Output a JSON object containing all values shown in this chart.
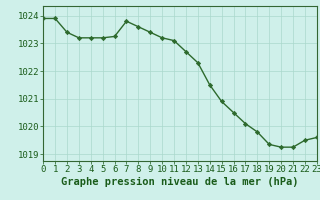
{
  "x": [
    0,
    1,
    2,
    3,
    4,
    5,
    6,
    7,
    8,
    9,
    10,
    11,
    12,
    13,
    14,
    15,
    16,
    17,
    18,
    19,
    20,
    21,
    22,
    23
  ],
  "y": [
    1023.9,
    1023.9,
    1023.4,
    1023.2,
    1023.2,
    1023.2,
    1023.25,
    1023.8,
    1023.6,
    1023.4,
    1023.2,
    1023.1,
    1022.7,
    1022.3,
    1021.5,
    1020.9,
    1020.5,
    1020.1,
    1019.8,
    1019.35,
    1019.25,
    1019.25,
    1019.5,
    1019.6
  ],
  "xlim": [
    0,
    23
  ],
  "ylim": [
    1018.75,
    1024.35
  ],
  "yticks": [
    1019,
    1020,
    1021,
    1022,
    1023,
    1024
  ],
  "xticks": [
    0,
    1,
    2,
    3,
    4,
    5,
    6,
    7,
    8,
    9,
    10,
    11,
    12,
    13,
    14,
    15,
    16,
    17,
    18,
    19,
    20,
    21,
    22,
    23
  ],
  "xlabel": "Graphe pression niveau de la mer (hPa)",
  "line_color": "#2d6a2d",
  "marker": "D",
  "marker_size": 2.2,
  "bg_color": "#cff0ea",
  "grid_color": "#aad8cc",
  "axis_color": "#336633",
  "tick_label_color": "#1a5c1a",
  "xlabel_color": "#1a5c1a",
  "xlabel_fontsize": 7.5,
  "tick_fontsize": 6.5,
  "linewidth": 1.0
}
